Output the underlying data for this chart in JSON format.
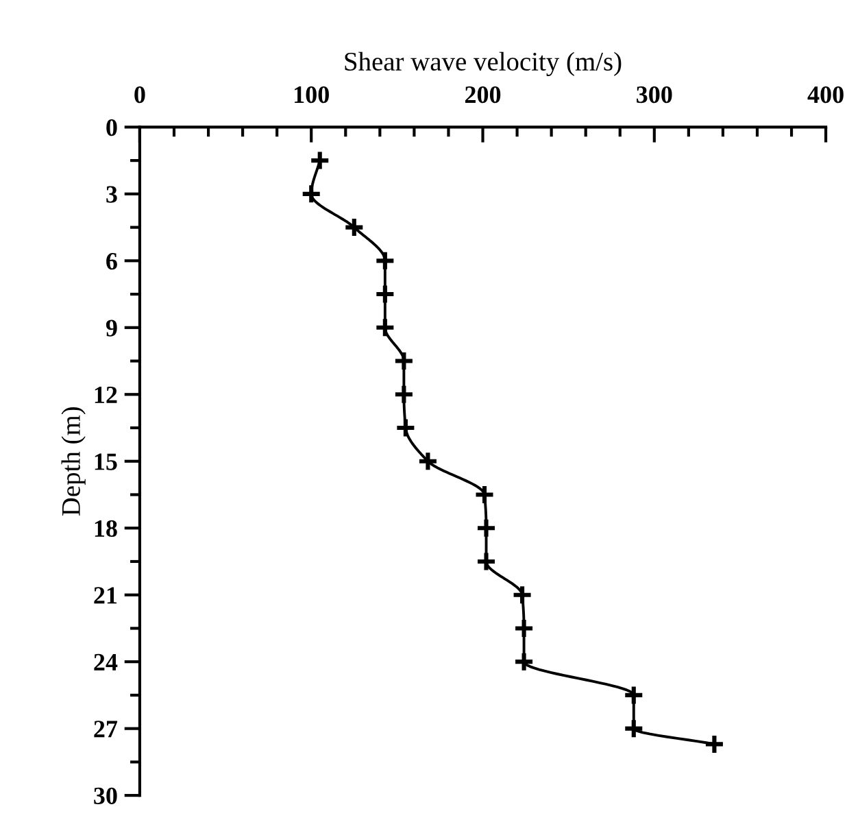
{
  "chart_data": {
    "type": "line",
    "xlabel": "Shear wave velocity (m/s)",
    "ylabel": "Depth (m)",
    "series": [
      {
        "color": "#000000",
        "x": [
          105,
          100,
          125,
          143,
          143,
          143,
          154,
          154,
          155,
          168,
          201,
          202,
          202,
          223,
          224,
          224,
          288,
          288,
          335
        ],
        "values": [
          1.5,
          3,
          4.5,
          6,
          7.5,
          9,
          10.5,
          12,
          13.5,
          15,
          16.5,
          18,
          19.5,
          21,
          22.5,
          24,
          25.5,
          27,
          27.7
        ]
      }
    ],
    "marker": "cross",
    "line_style": "solid",
    "grid": false,
    "legend": false,
    "xlim": [
      0,
      400
    ],
    "ylim": [
      30,
      0
    ],
    "xticks": [
      0,
      {
        "value": 20,
        "label": null
      },
      {
        "value": 40,
        "label": null
      },
      {
        "value": 60,
        "label": null
      },
      {
        "value": 80,
        "label": null
      },
      100,
      {
        "value": 120,
        "label": null
      },
      {
        "value": 140,
        "label": null
      },
      {
        "value": 160,
        "label": null
      },
      {
        "value": 180,
        "label": null
      },
      200,
      {
        "value": 220,
        "label": null
      },
      {
        "value": 240,
        "label": null
      },
      {
        "value": 260,
        "label": null
      },
      {
        "value": 280,
        "label": null
      },
      300,
      {
        "value": 320,
        "label": null
      },
      {
        "value": 340,
        "label": null
      },
      {
        "value": 360,
        "label": null
      },
      {
        "value": 380,
        "label": null
      },
      400
    ],
    "yticks": [
      0,
      {
        "value": 1.5,
        "label": null
      },
      3,
      {
        "value": 4.5,
        "label": null
      },
      6,
      {
        "value": 7.5,
        "label": null
      },
      9,
      {
        "value": 10.5,
        "label": null
      },
      12,
      {
        "value": 13.5,
        "label": null
      },
      15,
      {
        "value": 16.5,
        "label": null
      },
      18,
      {
        "value": 19.5,
        "label": null
      },
      21,
      {
        "value": 22.5,
        "label": null
      },
      24,
      {
        "value": 25.5,
        "label": null
      },
      27,
      {
        "value": 28.5,
        "label": null
      },
      30
    ]
  }
}
